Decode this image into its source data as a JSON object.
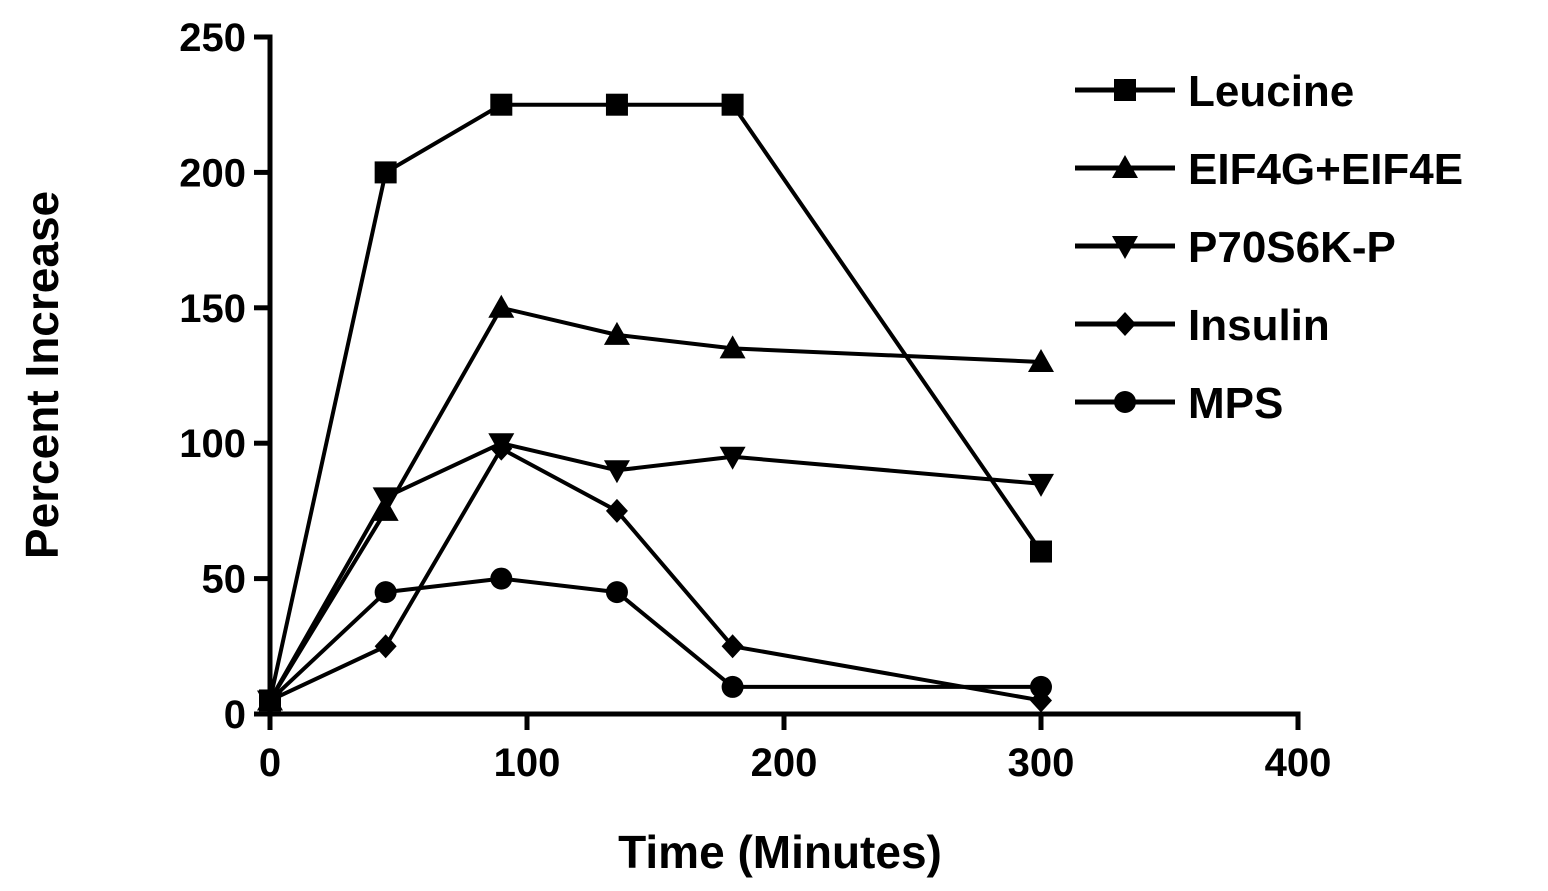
{
  "chart_data": {
    "type": "line",
    "xlabel": "Time (Minutes)",
    "ylabel": "Percent Increase",
    "xlim": [
      0,
      400
    ],
    "ylim": [
      0,
      250
    ],
    "xticks": [
      0,
      100,
      200,
      300,
      400
    ],
    "yticks": [
      0,
      50,
      100,
      150,
      200,
      250
    ],
    "legend_position": "top-right",
    "grid": false,
    "series": [
      {
        "name": "Leucine",
        "marker": "square",
        "x": [
          0,
          45,
          90,
          135,
          180,
          300
        ],
        "y": [
          5,
          200,
          225,
          225,
          225,
          60
        ]
      },
      {
        "name": "EIF4G+EIF4E",
        "marker": "triangle-up",
        "x": [
          0,
          45,
          90,
          135,
          180,
          300
        ],
        "y": [
          5,
          75,
          150,
          140,
          135,
          130
        ]
      },
      {
        "name": "P70S6K-P",
        "marker": "triangle-down",
        "x": [
          0,
          45,
          90,
          135,
          180,
          300
        ],
        "y": [
          5,
          80,
          100,
          90,
          95,
          85
        ]
      },
      {
        "name": "Insulin",
        "marker": "diamond",
        "x": [
          0,
          45,
          90,
          135,
          180,
          300
        ],
        "y": [
          5,
          25,
          98,
          75,
          25,
          5
        ]
      },
      {
        "name": "MPS",
        "marker": "circle",
        "x": [
          0,
          45,
          90,
          135,
          180,
          300
        ],
        "y": [
          5,
          45,
          50,
          45,
          10,
          10
        ]
      }
    ]
  }
}
